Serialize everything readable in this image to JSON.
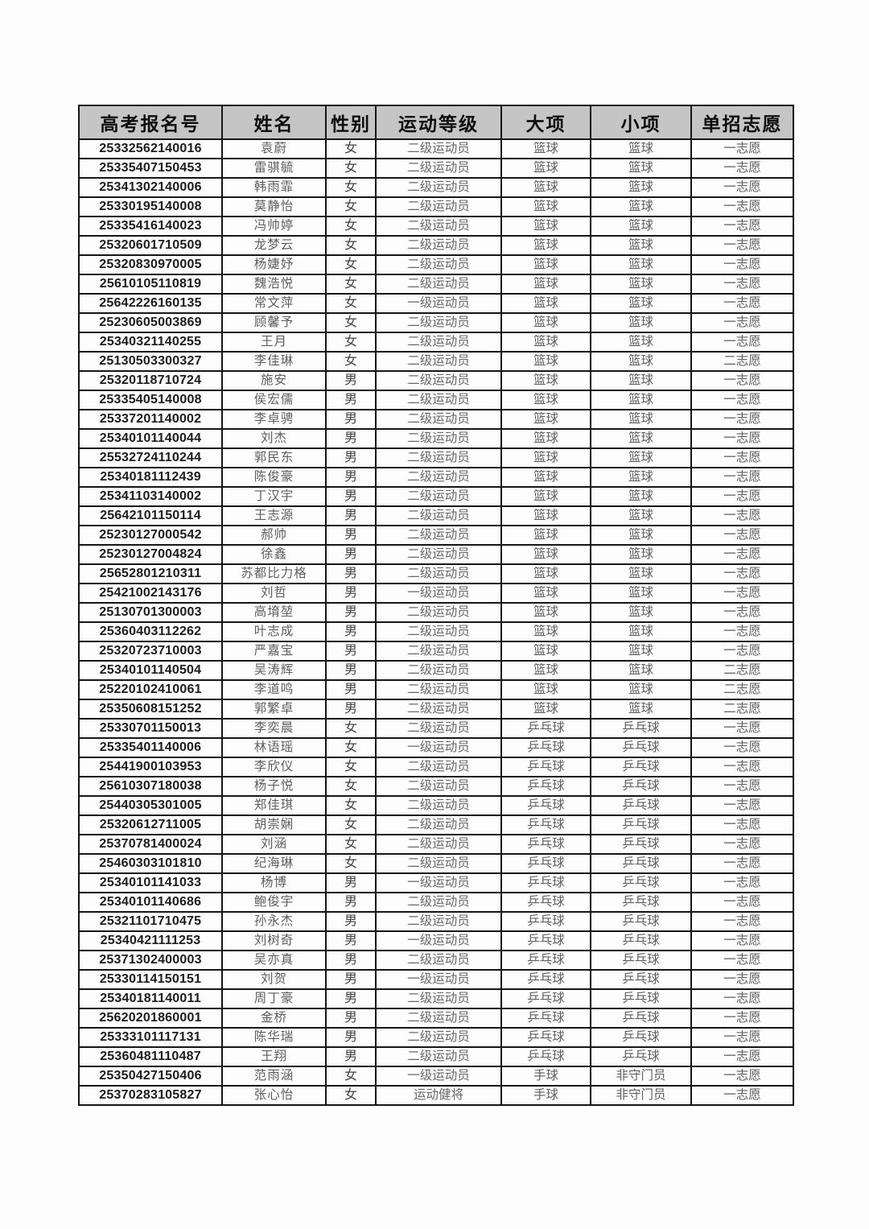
{
  "table": {
    "headers": [
      "高考报名号",
      "姓名",
      "性别",
      "运动等级",
      "大项",
      "小项",
      "单招志愿"
    ],
    "header_bg": "#c5c5c5",
    "border_color": "#161616",
    "rows": [
      [
        "25332562140016",
        "袁蔚",
        "女",
        "二级运动员",
        "篮球",
        "篮球",
        "一志愿"
      ],
      [
        "25335407150453",
        "雷骐毓",
        "女",
        "二级运动员",
        "篮球",
        "篮球",
        "一志愿"
      ],
      [
        "25341302140006",
        "韩雨霏",
        "女",
        "二级运动员",
        "篮球",
        "篮球",
        "一志愿"
      ],
      [
        "25330195140008",
        "莫静怡",
        "女",
        "二级运动员",
        "篮球",
        "篮球",
        "一志愿"
      ],
      [
        "25335416140023",
        "冯帅婷",
        "女",
        "二级运动员",
        "篮球",
        "篮球",
        "一志愿"
      ],
      [
        "25320601710509",
        "龙梦云",
        "女",
        "二级运动员",
        "篮球",
        "篮球",
        "一志愿"
      ],
      [
        "25320830970005",
        "杨婕妤",
        "女",
        "二级运动员",
        "篮球",
        "篮球",
        "一志愿"
      ],
      [
        "25610105110819",
        "魏浩悦",
        "女",
        "二级运动员",
        "篮球",
        "篮球",
        "一志愿"
      ],
      [
        "25642226160135",
        "常文萍",
        "女",
        "一级运动员",
        "篮球",
        "篮球",
        "一志愿"
      ],
      [
        "25230605003869",
        "顾馨予",
        "女",
        "二级运动员",
        "篮球",
        "篮球",
        "一志愿"
      ],
      [
        "25340321140255",
        "王月",
        "女",
        "二级运动员",
        "篮球",
        "篮球",
        "一志愿"
      ],
      [
        "25130503300327",
        "李佳琳",
        "女",
        "二级运动员",
        "篮球",
        "篮球",
        "二志愿"
      ],
      [
        "25320118710724",
        "施安",
        "男",
        "二级运动员",
        "篮球",
        "篮球",
        "一志愿"
      ],
      [
        "25335405140008",
        "侯宏儒",
        "男",
        "二级运动员",
        "篮球",
        "篮球",
        "一志愿"
      ],
      [
        "25337201140002",
        "李卓骋",
        "男",
        "二级运动员",
        "篮球",
        "篮球",
        "一志愿"
      ],
      [
        "25340101140044",
        "刘杰",
        "男",
        "二级运动员",
        "篮球",
        "篮球",
        "一志愿"
      ],
      [
        "25532724110244",
        "郭民东",
        "男",
        "二级运动员",
        "篮球",
        "篮球",
        "一志愿"
      ],
      [
        "25340181112439",
        "陈俊豪",
        "男",
        "二级运动员",
        "篮球",
        "篮球",
        "一志愿"
      ],
      [
        "25341103140002",
        "丁汉宇",
        "男",
        "二级运动员",
        "篮球",
        "篮球",
        "一志愿"
      ],
      [
        "25642101150114",
        "王志源",
        "男",
        "二级运动员",
        "篮球",
        "篮球",
        "一志愿"
      ],
      [
        "25230127000542",
        "郝帅",
        "男",
        "二级运动员",
        "篮球",
        "篮球",
        "一志愿"
      ],
      [
        "25230127004824",
        "徐鑫",
        "男",
        "二级运动员",
        "篮球",
        "篮球",
        "一志愿"
      ],
      [
        "25652801210311",
        "苏都比力格",
        "男",
        "二级运动员",
        "篮球",
        "篮球",
        "一志愿"
      ],
      [
        "25421002143176",
        "刘哲",
        "男",
        "一级运动员",
        "篮球",
        "篮球",
        "一志愿"
      ],
      [
        "25130701300003",
        "高堉堃",
        "男",
        "二级运动员",
        "篮球",
        "篮球",
        "一志愿"
      ],
      [
        "25360403112262",
        "叶志成",
        "男",
        "二级运动员",
        "篮球",
        "篮球",
        "一志愿"
      ],
      [
        "25320723710003",
        "严嘉宝",
        "男",
        "二级运动员",
        "篮球",
        "篮球",
        "一志愿"
      ],
      [
        "25340101140504",
        "吴涛辉",
        "男",
        "二级运动员",
        "篮球",
        "篮球",
        "二志愿"
      ],
      [
        "25220102410061",
        "李道鸣",
        "男",
        "二级运动员",
        "篮球",
        "篮球",
        "二志愿"
      ],
      [
        "25350608151252",
        "郭繁卓",
        "男",
        "二级运动员",
        "篮球",
        "篮球",
        "二志愿"
      ],
      [
        "25330701150013",
        "李奕晨",
        "女",
        "二级运动员",
        "乒乓球",
        "乒乓球",
        "一志愿"
      ],
      [
        "25335401140006",
        "林语瑶",
        "女",
        "一级运动员",
        "乒乓球",
        "乒乓球",
        "一志愿"
      ],
      [
        "25441900103953",
        "李欣仪",
        "女",
        "二级运动员",
        "乒乓球",
        "乒乓球",
        "一志愿"
      ],
      [
        "25610307180038",
        "杨子悦",
        "女",
        "二级运动员",
        "乒乓球",
        "乒乓球",
        "一志愿"
      ],
      [
        "25440305301005",
        "郑佳琪",
        "女",
        "二级运动员",
        "乒乓球",
        "乒乓球",
        "一志愿"
      ],
      [
        "25320612711005",
        "胡崇娴",
        "女",
        "二级运动员",
        "乒乓球",
        "乒乓球",
        "一志愿"
      ],
      [
        "25370781400024",
        "刘涵",
        "女",
        "二级运动员",
        "乒乓球",
        "乒乓球",
        "一志愿"
      ],
      [
        "25460303101810",
        "纪海琳",
        "女",
        "二级运动员",
        "乒乓球",
        "乒乓球",
        "一志愿"
      ],
      [
        "25340101141033",
        "杨博",
        "男",
        "一级运动员",
        "乒乓球",
        "乒乓球",
        "一志愿"
      ],
      [
        "25340101140686",
        "鲍俊宇",
        "男",
        "二级运动员",
        "乒乓球",
        "乒乓球",
        "一志愿"
      ],
      [
        "25321101710475",
        "孙永杰",
        "男",
        "二级运动员",
        "乒乓球",
        "乒乓球",
        "一志愿"
      ],
      [
        "25340421111253",
        "刘树奇",
        "男",
        "一级运动员",
        "乒乓球",
        "乒乓球",
        "一志愿"
      ],
      [
        "25371302400003",
        "吴亦真",
        "男",
        "二级运动员",
        "乒乓球",
        "乒乓球",
        "一志愿"
      ],
      [
        "25330114150151",
        "刘贺",
        "男",
        "一级运动员",
        "乒乓球",
        "乒乓球",
        "一志愿"
      ],
      [
        "25340181140011",
        "周丁豪",
        "男",
        "二级运动员",
        "乒乓球",
        "乒乓球",
        "一志愿"
      ],
      [
        "25620201860001",
        "金桥",
        "男",
        "二级运动员",
        "乒乓球",
        "乒乓球",
        "一志愿"
      ],
      [
        "25333101117131",
        "陈华瑞",
        "男",
        "二级运动员",
        "乒乓球",
        "乒乓球",
        "一志愿"
      ],
      [
        "25360481110487",
        "王翔",
        "男",
        "二级运动员",
        "乒乓球",
        "乒乓球",
        "一志愿"
      ],
      [
        "25350427150406",
        "范雨涵",
        "女",
        "一级运动员",
        "手球",
        "非守门员",
        "一志愿"
      ],
      [
        "25370283105827",
        "张心怡",
        "女",
        "运动健将",
        "手球",
        "非守门员",
        "一志愿"
      ]
    ]
  }
}
